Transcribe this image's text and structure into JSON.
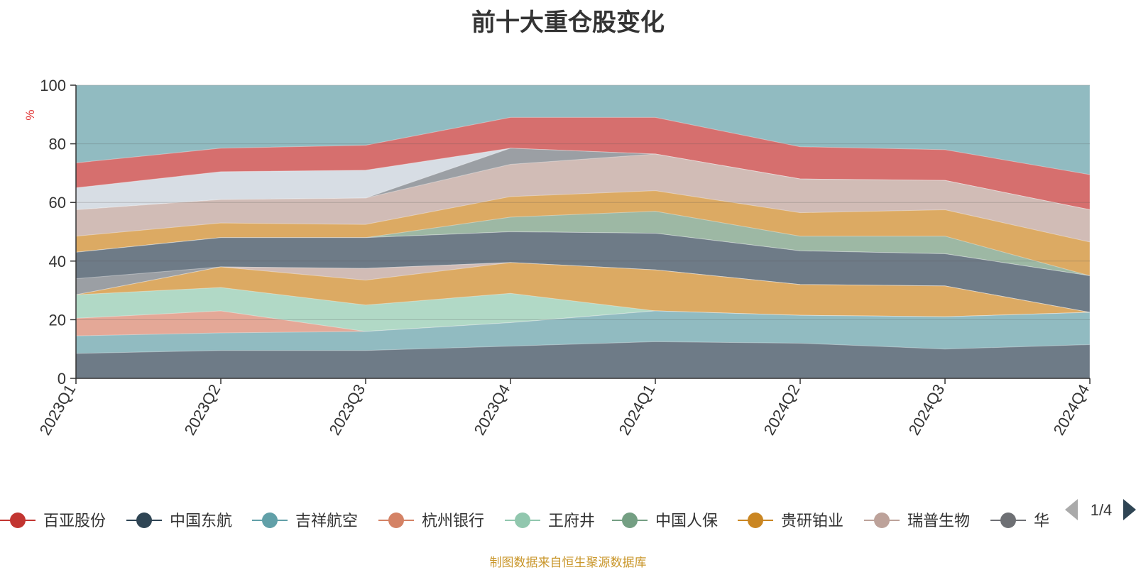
{
  "chart_data": {
    "type": "area",
    "title": "前十大重仓股变化",
    "ylabel": "%",
    "ylim": [
      0,
      100
    ],
    "yticks": [
      0,
      20,
      40,
      60,
      80,
      100
    ],
    "grid": true,
    "categories": [
      "2023Q1",
      "2023Q2",
      "2023Q3",
      "2023Q4",
      "2024Q1",
      "2024Q2",
      "2024Q3",
      "2024Q4"
    ],
    "layers": [
      {
        "color": "#6e7b87",
        "values": [
          8.5,
          9.5,
          9.5,
          11,
          12.5,
          12,
          10,
          11.5
        ]
      },
      {
        "color": "#91bbc1",
        "values": [
          14.5,
          15.5,
          16,
          19,
          23,
          21.5,
          21,
          22.5
        ]
      },
      {
        "color": "#e4a897",
        "values": [
          20.5,
          23,
          16,
          19,
          23,
          21.5,
          21,
          22.5
        ]
      },
      {
        "color": "#b1d9c6",
        "values": [
          28.5,
          31,
          25,
          29,
          23,
          21.5,
          21,
          22.5
        ]
      },
      {
        "color": "#dcaa63",
        "values": [
          28.5,
          38,
          33.5,
          39.5,
          37,
          32,
          31.5,
          22.5
        ]
      },
      {
        "color": "#d1bcb6",
        "values": [
          28.5,
          38,
          37.5,
          39.5,
          37,
          32,
          31.5,
          22.5
        ]
      },
      {
        "color": "#9b9fa4",
        "values": [
          34,
          38,
          37.5,
          39.5,
          37,
          32,
          31.5,
          22.5
        ]
      },
      {
        "color": "#6e7b87",
        "values": [
          43,
          48,
          48,
          50,
          49.5,
          43.5,
          42.5,
          35
        ]
      },
      {
        "color": "#d7e8e0",
        "values": [
          43,
          48,
          48,
          50,
          49.5,
          43.5,
          42.5,
          35
        ]
      },
      {
        "color": "#9db8a4",
        "values": [
          43,
          48,
          48,
          55,
          57,
          48.5,
          48.5,
          35
        ]
      },
      {
        "color": "#dcaa63",
        "values": [
          48.5,
          53,
          52.5,
          62,
          64,
          56.5,
          57.5,
          46.5
        ]
      },
      {
        "color": "#d1bcb6",
        "values": [
          57.5,
          61,
          61.5,
          73,
          76.5,
          68,
          67.5,
          57.5
        ]
      },
      {
        "color": "#9b9fa4",
        "values": [
          57.5,
          61,
          61.5,
          78.5,
          76.5,
          68,
          67.5,
          57.5
        ]
      },
      {
        "color": "#d7dde4",
        "values": [
          65,
          70.5,
          71,
          78.5,
          76.5,
          68,
          67.5,
          57.5
        ]
      },
      {
        "color": "#d66f6e",
        "values": [
          73.5,
          78.5,
          79.5,
          89,
          89,
          79,
          78,
          69.5
        ]
      },
      {
        "color": "#91bbc1",
        "values": [
          100,
          100,
          100,
          100,
          100,
          100,
          100,
          100
        ]
      }
    ],
    "legend": {
      "position": "bottom",
      "page": "1/4",
      "items": [
        {
          "name": "百亚股份",
          "color": "#c23531"
        },
        {
          "name": "中国东航",
          "color": "#2f4554"
        },
        {
          "name": "吉祥航空",
          "color": "#61a0a8"
        },
        {
          "name": "杭州银行",
          "color": "#d48265"
        },
        {
          "name": "王府井",
          "color": "#91c7ae"
        },
        {
          "name": "中国人保",
          "color": "#749f83"
        },
        {
          "name": "贵研铂业",
          "color": "#ca8622"
        },
        {
          "name": "瑞普生物",
          "color": "#bda29a"
        },
        {
          "name": "华",
          "color": "#6e7074"
        }
      ]
    }
  },
  "source_note": "制图数据来自恒生聚源数据库"
}
